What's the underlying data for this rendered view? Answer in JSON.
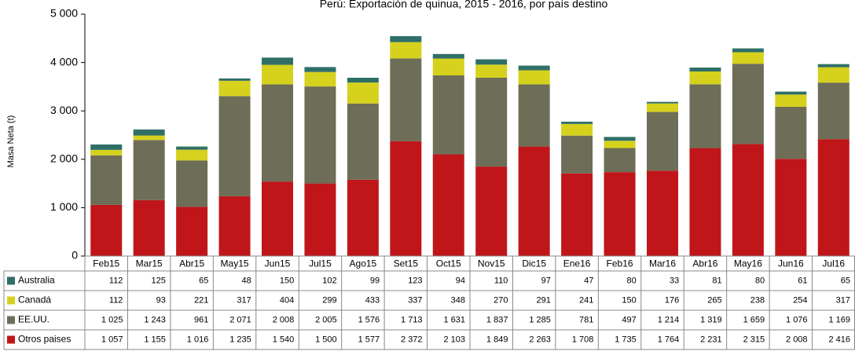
{
  "chart_data": {
    "type": "stacked_bar",
    "title": "Perú: Exportación de quinua, 2015 - 2016, por país destino",
    "y_label": "Masa Neta (t)",
    "categories": [
      "Feb15",
      "Mar15",
      "Abr15",
      "May15",
      "Jun15",
      "Jul15",
      "Ago15",
      "Set15",
      "Oct15",
      "Nov15",
      "Dic15",
      "Ene16",
      "Feb16",
      "Mar16",
      "Abr16",
      "May16",
      "Jun16",
      "Jul16"
    ],
    "series": [
      {
        "name": "Australia",
        "color": "#2f6f68",
        "values": [
          112,
          125,
          65,
          48,
          150,
          102,
          99,
          123,
          94,
          110,
          97,
          47,
          80,
          33,
          81,
          80,
          61,
          65
        ],
        "value_labels": [
          "112",
          "125",
          "65",
          "48",
          "150",
          "102",
          "99",
          "123",
          "94",
          "110",
          "97",
          "47",
          "80",
          "33",
          "81",
          "80",
          "61",
          "65"
        ]
      },
      {
        "name": "Canadá",
        "color": "#d6d11c",
        "values": [
          112,
          93,
          221,
          317,
          404,
          299,
          433,
          337,
          348,
          270,
          291,
          241,
          150,
          176,
          265,
          238,
          254,
          317
        ],
        "value_labels": [
          "112",
          "93",
          "221",
          "317",
          "404",
          "299",
          "433",
          "337",
          "348",
          "270",
          "291",
          "241",
          "150",
          "176",
          "265",
          "238",
          "254",
          "317"
        ]
      },
      {
        "name": "EE.UU.",
        "color": "#6e6d57",
        "values": [
          1025,
          1243,
          961,
          2071,
          2008,
          2005,
          1576,
          1713,
          1631,
          1837,
          1285,
          781,
          497,
          1214,
          1319,
          1659,
          1076,
          1169
        ],
        "value_labels": [
          "1 025",
          "1 243",
          "961",
          "2 071",
          "2 008",
          "2 005",
          "1 576",
          "1 713",
          "1 631",
          "1 837",
          "1 285",
          "781",
          "497",
          "1 214",
          "1 319",
          "1 659",
          "1 076",
          "1 169"
        ]
      },
      {
        "name": "Otros paises",
        "color": "#c0161a",
        "values": [
          1057,
          1155,
          1016,
          1235,
          1540,
          1500,
          1577,
          2372,
          2103,
          1849,
          2263,
          1708,
          1735,
          1764,
          2231,
          2315,
          2008,
          2416
        ],
        "value_labels": [
          "1 057",
          "1 155",
          "1 016",
          "1 235",
          "1 540",
          "1 500",
          "1 577",
          "2 372",
          "2 103",
          "1 849",
          "2 263",
          "1 708",
          "1 735",
          "1 764",
          "2 231",
          "2 315",
          "2 008",
          "2 416"
        ]
      }
    ],
    "ylim": [
      0,
      5000
    ],
    "yticks": [
      0,
      {
        "value": 1000,
        "label": "1 000"
      },
      {
        "value": 2000,
        "label": "2 000"
      },
      {
        "value": 3000,
        "label": "3 000"
      },
      {
        "value": 4000,
        "label": "4 000"
      },
      {
        "value": 5000,
        "label": "5 000"
      }
    ]
  }
}
